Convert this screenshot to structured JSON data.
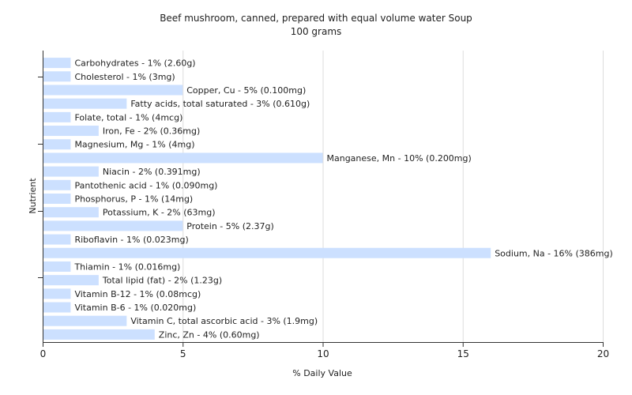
{
  "chart_data": {
    "type": "bar",
    "orientation": "horizontal",
    "title": "Beef mushroom, canned, prepared with equal volume water Soup",
    "subtitle": "100 grams",
    "xlabel": "% Daily Value",
    "ylabel": "Nutrient",
    "xlim": [
      0,
      20
    ],
    "xticks": [
      0,
      5,
      10,
      15,
      20
    ],
    "grid": true,
    "bar_color": "#cce0ff",
    "categories": [
      "Carbohydrates",
      "Cholesterol",
      "Copper, Cu",
      "Fatty acids, total saturated",
      "Folate, total",
      "Iron, Fe",
      "Magnesium, Mg",
      "Manganese, Mn",
      "Niacin",
      "Pantothenic acid",
      "Phosphorus, P",
      "Potassium, K",
      "Protein",
      "Riboflavin",
      "Sodium, Na",
      "Thiamin",
      "Total lipid (fat)",
      "Vitamin B-12",
      "Vitamin B-6",
      "Vitamin C, total ascorbic acid",
      "Zinc, Zn"
    ],
    "values": [
      1,
      1,
      5,
      3,
      1,
      2,
      1,
      10,
      2,
      1,
      1,
      2,
      5,
      1,
      16,
      1,
      2,
      1,
      1,
      3,
      4
    ],
    "labels": [
      "Carbohydrates - 1% (2.60g)",
      "Cholesterol - 1% (3mg)",
      "Copper, Cu - 5% (0.100mg)",
      "Fatty acids, total saturated - 3% (0.610g)",
      "Folate, total - 1% (4mcg)",
      "Iron, Fe - 2% (0.36mg)",
      "Magnesium, Mg - 1% (4mg)",
      "Manganese, Mn - 10% (0.200mg)",
      "Niacin - 2% (0.391mg)",
      "Pantothenic acid - 1% (0.090mg)",
      "Phosphorus, P - 1% (14mg)",
      "Potassium, K - 2% (63mg)",
      "Protein - 5% (2.37g)",
      "Riboflavin - 1% (0.023mg)",
      "Sodium, Na - 16% (386mg)",
      "Thiamin - 1% (0.016mg)",
      "Total lipid (fat) - 2% (1.23g)",
      "Vitamin B-12 - 1% (0.08mcg)",
      "Vitamin B-6 - 1% (0.020mg)",
      "Vitamin C, total ascorbic acid - 3% (1.9mg)",
      "Zinc, Zn - 4% (0.60mg)"
    ]
  }
}
